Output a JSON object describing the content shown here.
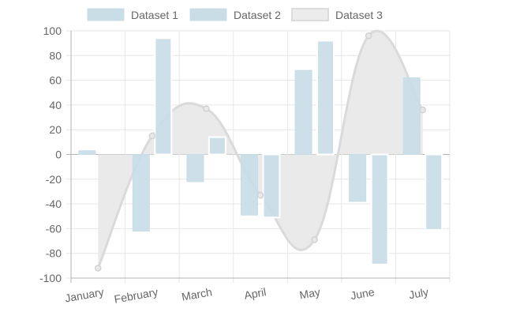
{
  "chart_data": {
    "type": "bar",
    "categories": [
      "January",
      "February",
      "March",
      "April",
      "May",
      "June",
      "July"
    ],
    "ylim": [
      -100,
      100
    ],
    "yticks": [
      -100,
      -80,
      -60,
      -40,
      -20,
      0,
      20,
      40,
      60,
      80,
      100
    ],
    "grid": true,
    "legend_position": "top",
    "series": [
      {
        "name": "Dataset 1",
        "type": "bar",
        "values": [
          3,
          -62,
          -22,
          -49,
          68,
          -38,
          62
        ],
        "color": "#c9dde7",
        "border_color": "#c9dde7"
      },
      {
        "name": "Dataset 2",
        "type": "bar",
        "values": [
          0,
          94,
          14,
          -51,
          92,
          -89,
          -61
        ],
        "color": "#c9dde7",
        "border_color": "#ffffff"
      },
      {
        "name": "Dataset 3",
        "type": "area",
        "values": [
          -92,
          15,
          37,
          -33,
          -69,
          96,
          36
        ],
        "color": "#e9e9e9",
        "border_color": "#dadada"
      }
    ]
  }
}
